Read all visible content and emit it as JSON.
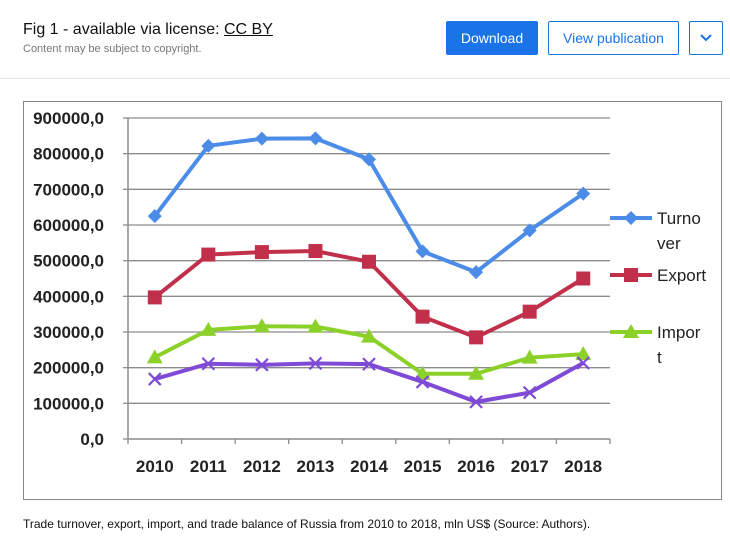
{
  "header": {
    "title_prefix": "Fig 1 - available via license: ",
    "license": "CC BY",
    "subtitle": "Content may be subject to copyright.",
    "download_label": "Download",
    "view_label": "View publication"
  },
  "caption": "Trade turnover, export, import, and trade balance of Russia from 2010 to 2018, mln US$ (Source: Authors).",
  "colors": {
    "accent": "#1b73e8",
    "turnover": "#4a8ce8",
    "export": "#c0304a",
    "import": "#8bd12a",
    "balance": "#7e4ad6"
  },
  "chart_data": {
    "type": "line",
    "categories": [
      "2010",
      "2011",
      "2012",
      "2013",
      "2014",
      "2015",
      "2016",
      "2017",
      "2018"
    ],
    "ylim": [
      0,
      900000
    ],
    "yticks": [
      "0,0",
      "100000,0",
      "200000,0",
      "300000,0",
      "400000,0",
      "500000,0",
      "600000,0",
      "700000,0",
      "800000,0",
      "900000,0"
    ],
    "grid": true,
    "legend_position": "right",
    "series": [
      {
        "name": "Turnover",
        "legend_lines": [
          "Turno",
          "ver"
        ],
        "marker": "diamond",
        "color": "#4a8ce8",
        "values": [
          625000,
          822000,
          842000,
          843000,
          784000,
          526000,
          468000,
          585000,
          688000
        ]
      },
      {
        "name": "Export",
        "legend_lines": [
          "Export"
        ],
        "marker": "square",
        "color": "#c0304a",
        "values": [
          397000,
          517000,
          524000,
          527000,
          497000,
          343000,
          285000,
          357000,
          450000
        ]
      },
      {
        "name": "Import",
        "legend_lines": [
          "Impor",
          "t"
        ],
        "marker": "triangle",
        "color": "#8bd12a",
        "values": [
          229000,
          306000,
          316000,
          315000,
          287000,
          183000,
          183000,
          228000,
          238000
        ]
      },
      {
        "name": "",
        "legend_lines": [],
        "marker": "x",
        "color": "#7e4ad6",
        "values": [
          168000,
          211000,
          208000,
          212000,
          210000,
          160000,
          104000,
          130000,
          213000
        ]
      }
    ]
  }
}
